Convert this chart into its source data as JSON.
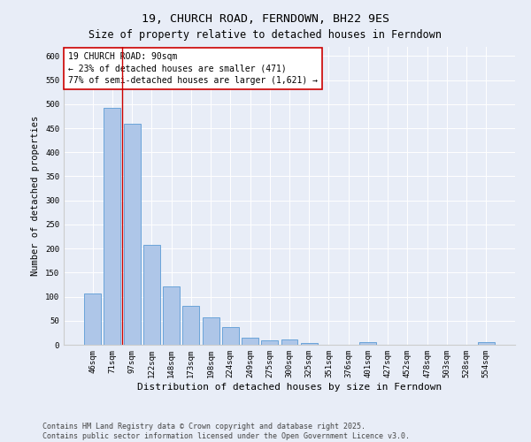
{
  "title": "19, CHURCH ROAD, FERNDOWN, BH22 9ES",
  "subtitle": "Size of property relative to detached houses in Ferndown",
  "xlabel": "Distribution of detached houses by size in Ferndown",
  "ylabel": "Number of detached properties",
  "categories": [
    "46sqm",
    "71sqm",
    "97sqm",
    "122sqm",
    "148sqm",
    "173sqm",
    "198sqm",
    "224sqm",
    "249sqm",
    "275sqm",
    "300sqm",
    "325sqm",
    "351sqm",
    "376sqm",
    "401sqm",
    "427sqm",
    "452sqm",
    "478sqm",
    "503sqm",
    "528sqm",
    "554sqm"
  ],
  "values": [
    107,
    492,
    460,
    207,
    122,
    80,
    57,
    37,
    14,
    9,
    11,
    3,
    0,
    0,
    6,
    0,
    0,
    0,
    0,
    0,
    6
  ],
  "bar_color": "#aec6e8",
  "bar_edge_color": "#5b9bd5",
  "vline_x": 1.5,
  "vline_color": "#cc0000",
  "annotation_line1": "19 CHURCH ROAD: 90sqm",
  "annotation_line2": "← 23% of detached houses are smaller (471)",
  "annotation_line3": "77% of semi-detached houses are larger (1,621) →",
  "box_edge_color": "#cc0000",
  "ylim": [
    0,
    620
  ],
  "yticks": [
    0,
    50,
    100,
    150,
    200,
    250,
    300,
    350,
    400,
    450,
    500,
    550,
    600
  ],
  "background_color": "#e8edf7",
  "plot_bg_color": "#e8edf7",
  "title_fontsize": 9.5,
  "subtitle_fontsize": 8.5,
  "xlabel_fontsize": 8,
  "ylabel_fontsize": 7.5,
  "tick_fontsize": 6.5,
  "annotation_fontsize": 7,
  "footer_line1": "Contains HM Land Registry data © Crown copyright and database right 2025.",
  "footer_line2": "Contains public sector information licensed under the Open Government Licence v3.0.",
  "footer_fontsize": 6
}
